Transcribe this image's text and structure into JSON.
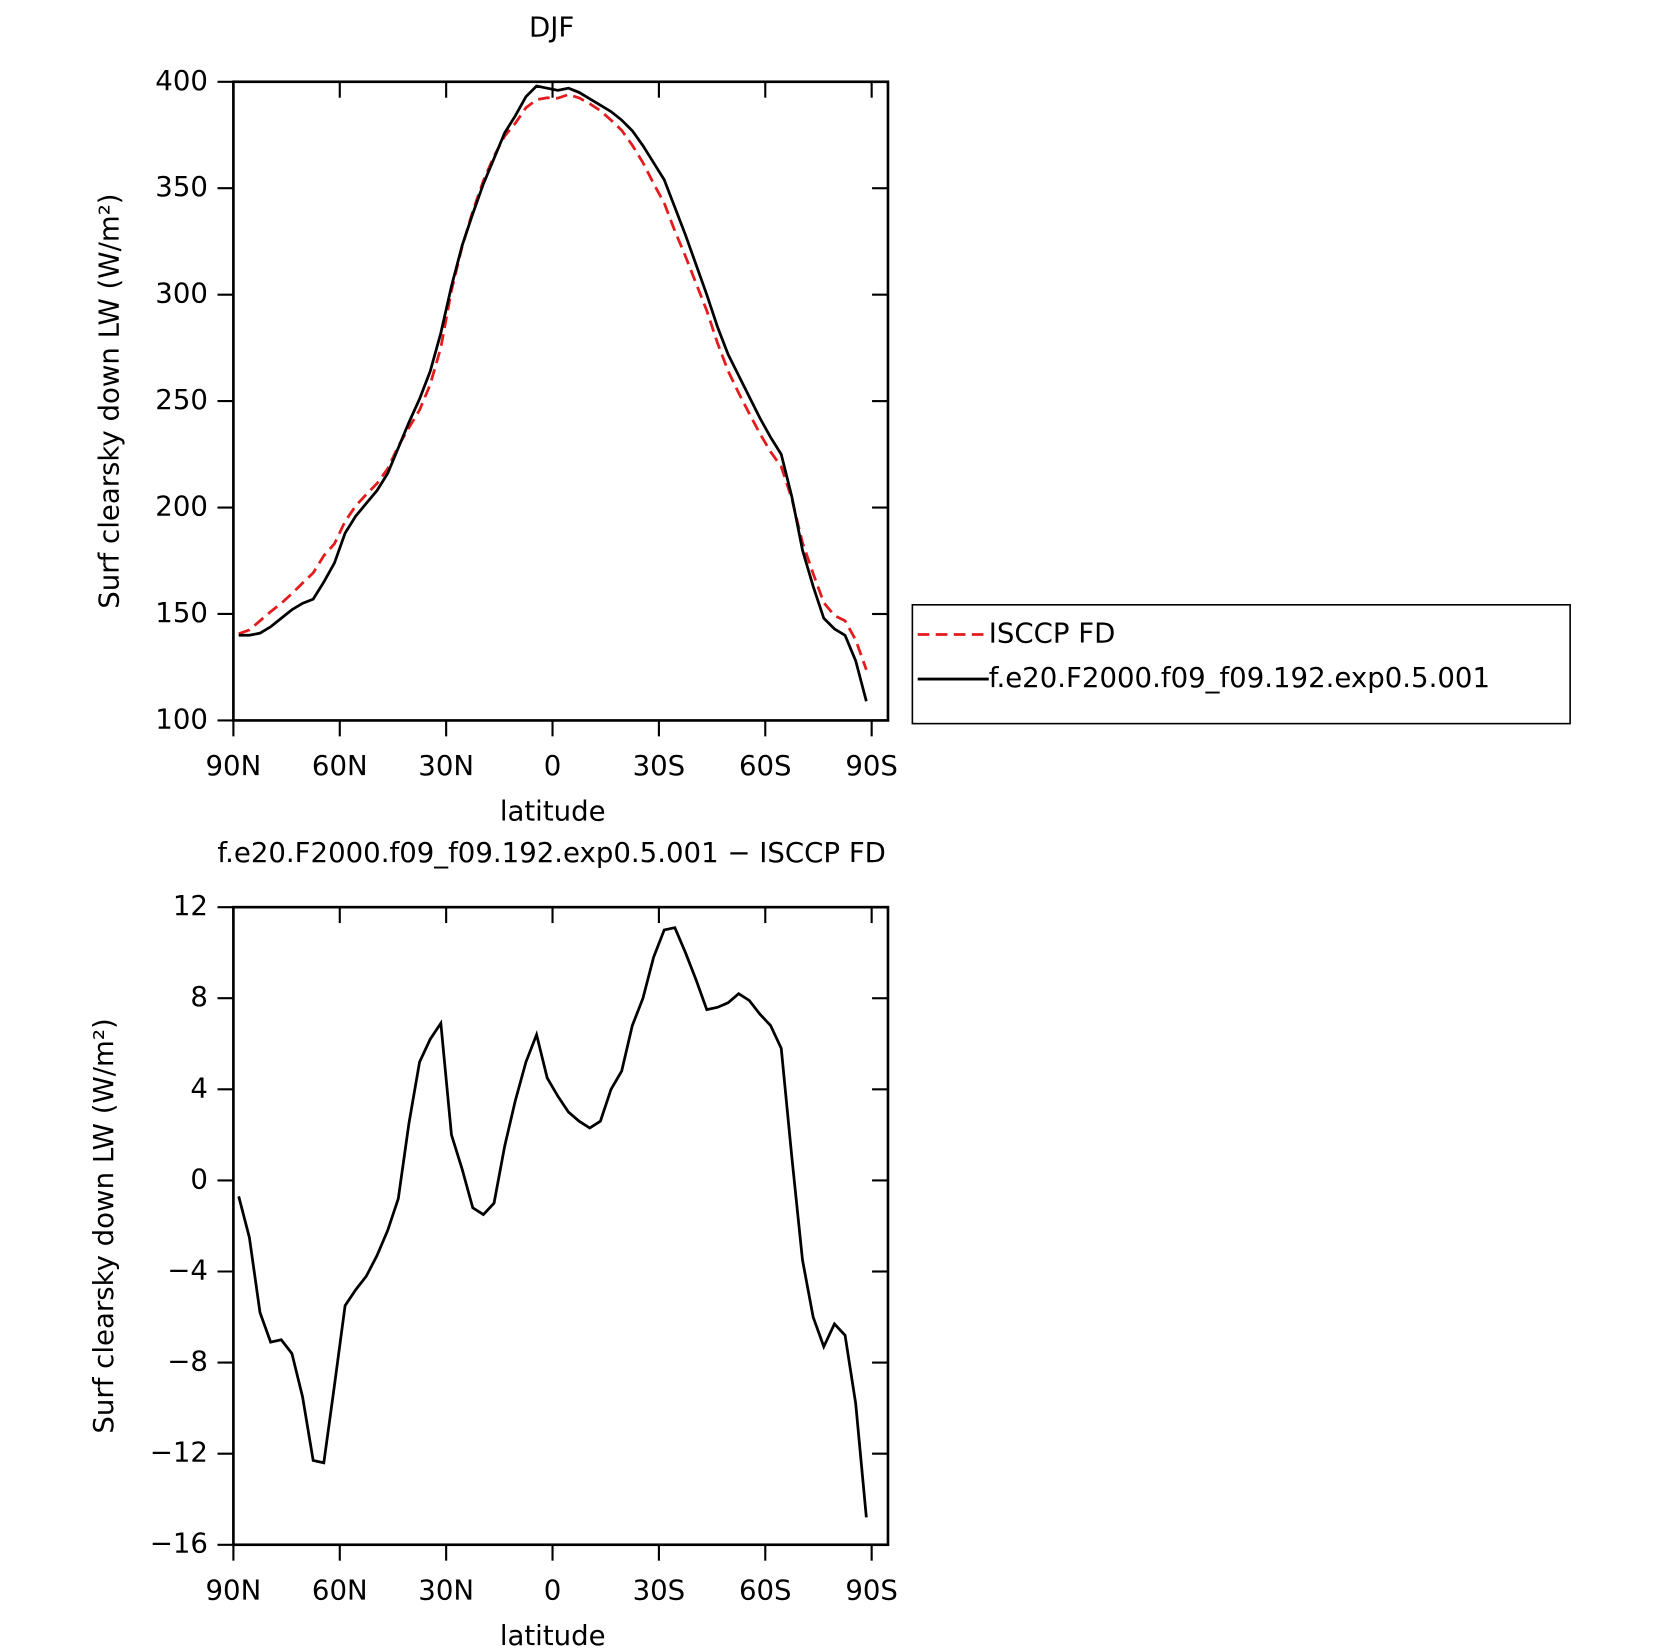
{
  "chart_data": [
    {
      "type": "line",
      "title": "DJF",
      "xlabel": "latitude",
      "ylabel": "Surf clearsky down LW (W/m²)",
      "x": [
        88.5,
        85.5,
        82.5,
        79.5,
        76.5,
        73.5,
        70.5,
        67.5,
        64.5,
        61.5,
        58.5,
        55.5,
        52.5,
        49.5,
        46.5,
        43.5,
        40.5,
        37.5,
        34.5,
        31.5,
        28.5,
        25.5,
        22.5,
        19.5,
        16.5,
        13.5,
        10.5,
        7.5,
        4.5,
        1.5,
        -1.5,
        -4.5,
        -7.5,
        -10.5,
        -13.5,
        -16.5,
        -19.5,
        -22.5,
        -25.5,
        -28.5,
        -31.5,
        -34.5,
        -37.5,
        -40.5,
        -43.5,
        -46.5,
        -49.5,
        -52.5,
        -55.5,
        -58.5,
        -61.5,
        -64.5,
        -67.5,
        -70.5,
        -73.5,
        -76.5,
        -79.5,
        -82.5,
        -85.5,
        -88.5
      ],
      "series": [
        {
          "name": "ISCCP FD",
          "color": "#e41a1c",
          "dash": true,
          "values": [
            140.7,
            142.5,
            146.8,
            151.1,
            155,
            159.6,
            164.5,
            169.3,
            177.4,
            183,
            193.5,
            200.8,
            206.2,
            211.3,
            218.2,
            228.8,
            237.5,
            245.8,
            257.8,
            275.1,
            302,
            322.5,
            339.2,
            353.5,
            365,
            374.5,
            380.5,
            387.8,
            391.6,
            392.5,
            392.3,
            394,
            392.4,
            389.7,
            386.4,
            382,
            377.2,
            370.2,
            362,
            352.2,
            343,
            329.9,
            318,
            305.2,
            292.5,
            277.4,
            264.2,
            253.8,
            244.1,
            234.7,
            226.2,
            219.2,
            204,
            183.5,
            169,
            155.3,
            149.3,
            146.8,
            137.8,
            123.8
          ]
        },
        {
          "name": "f.e20.F2000.f09_f09.192.exp0.5.001",
          "color": "#000000",
          "dash": false,
          "values": [
            140,
            140,
            141,
            144,
            148,
            152,
            155,
            157,
            165,
            174,
            188,
            196,
            202,
            208,
            216,
            228,
            240,
            251,
            264,
            282,
            304,
            323,
            338,
            352,
            364,
            376,
            384,
            393,
            398,
            397,
            396,
            397,
            395,
            392,
            389,
            386,
            382,
            377,
            370,
            362,
            354,
            341,
            328,
            314,
            300,
            285,
            272,
            262,
            252,
            242,
            233,
            225,
            205,
            180,
            163,
            148,
            143,
            140,
            128,
            109
          ]
        }
      ],
      "xlim": [
        90,
        -94.6
      ],
      "xticks": [
        {
          "value": 90,
          "label": "90N"
        },
        {
          "value": 60,
          "label": "60N"
        },
        {
          "value": 30,
          "label": "30N"
        },
        0,
        {
          "value": -30,
          "label": "30S"
        },
        {
          "value": -60,
          "label": "60S"
        },
        {
          "value": -90,
          "label": "90S"
        }
      ],
      "ylim": [
        100,
        400
      ],
      "yticks": [
        100,
        150,
        200,
        250,
        300,
        350,
        400
      ],
      "legend": "right"
    },
    {
      "type": "line",
      "title": "f.e20.F2000.f09_f09.192.exp0.5.001 − ISCCP FD",
      "xlabel": "latitude",
      "ylabel": "Surf clearsky down LW (W/m²)",
      "x": [
        88.5,
        85.5,
        82.5,
        79.5,
        76.5,
        73.5,
        70.5,
        67.5,
        64.5,
        61.5,
        58.5,
        55.5,
        52.5,
        49.5,
        46.5,
        43.5,
        40.5,
        37.5,
        34.5,
        31.5,
        28.5,
        25.5,
        22.5,
        19.5,
        16.5,
        13.5,
        10.5,
        7.5,
        4.5,
        1.5,
        -1.5,
        -4.5,
        -7.5,
        -10.5,
        -13.5,
        -16.5,
        -19.5,
        -22.5,
        -25.5,
        -28.5,
        -31.5,
        -34.5,
        -37.5,
        -40.5,
        -43.5,
        -46.5,
        -49.5,
        -52.5,
        -55.5,
        -58.5,
        -61.5,
        -64.5,
        -67.5,
        -70.5,
        -73.5,
        -76.5,
        -79.5,
        -82.5,
        -85.5,
        -88.5
      ],
      "series": [
        {
          "name": "f.e20.F2000.f09_f09.192.exp0.5.001",
          "color": "#000000",
          "dash": false,
          "values": [
            -0.7,
            -2.5,
            -5.8,
            -7.1,
            -7.0,
            -7.6,
            -9.5,
            -12.3,
            -12.4,
            -9,
            -5.5,
            -4.8,
            -4.2,
            -3.3,
            -2.2,
            -0.8,
            2.5,
            5.2,
            6.2,
            6.9,
            2.0,
            0.5,
            -1.2,
            -1.5,
            -1.0,
            1.5,
            3.5,
            5.2,
            6.4,
            4.5,
            3.7,
            3.0,
            2.6,
            2.3,
            2.6,
            4.0,
            4.8,
            6.8,
            8.0,
            9.8,
            11.0,
            11.1,
            10.0,
            8.8,
            7.5,
            7.6,
            7.8,
            8.2,
            7.9,
            7.3,
            6.8,
            5.8,
            1.0,
            -3.5,
            -6.0,
            -7.3,
            -6.3,
            -6.8,
            -9.8,
            -14.8
          ]
        }
      ],
      "xlim": [
        90,
        -94.6
      ],
      "xticks": [
        {
          "value": 90,
          "label": "90N"
        },
        {
          "value": 60,
          "label": "60N"
        },
        {
          "value": 30,
          "label": "30N"
        },
        0,
        {
          "value": -30,
          "label": "30S"
        },
        {
          "value": -60,
          "label": "60S"
        },
        {
          "value": -90,
          "label": "90S"
        }
      ],
      "ylim": [
        -16,
        12
      ],
      "yticks": [
        {
          "value": -16,
          "label": "−16"
        },
        {
          "value": -12,
          "label": "−12"
        },
        {
          "value": -8,
          "label": "−8"
        },
        {
          "value": -4,
          "label": "−4"
        },
        0,
        4,
        8,
        12
      ]
    }
  ]
}
